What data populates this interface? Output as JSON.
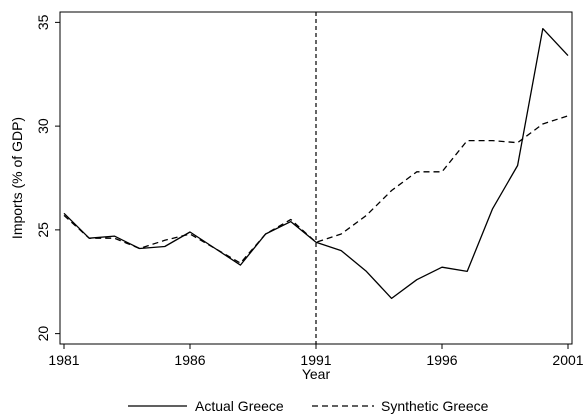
{
  "chart_data": {
    "type": "line",
    "title": "",
    "xlabel": "Year",
    "ylabel": "Imports (% of GDP)",
    "x": [
      1981,
      1982,
      1983,
      1984,
      1985,
      1986,
      1987,
      1988,
      1989,
      1990,
      1991,
      1992,
      1993,
      1994,
      1995,
      1996,
      1997,
      1998,
      1999,
      2000,
      2001
    ],
    "xlim": [
      1981,
      2001
    ],
    "ylim": [
      20,
      35
    ],
    "xticks": [
      "1981",
      "1986",
      "1991",
      "1996",
      "2001"
    ],
    "yticks": [
      "20",
      "25",
      "30",
      "35"
    ],
    "reference_line": {
      "x": 1991,
      "style": "dashed"
    },
    "grid": false,
    "legend_position": "bottom",
    "series": [
      {
        "name": "Actual Greece",
        "style": "solid",
        "color": "#000000",
        "values": [
          25.8,
          24.6,
          24.7,
          24.1,
          24.2,
          24.9,
          24.1,
          23.3,
          24.8,
          25.4,
          24.4,
          24.0,
          23.0,
          21.7,
          22.6,
          23.2,
          23.0,
          26.0,
          28.1,
          34.7,
          33.4
        ]
      },
      {
        "name": "Synthetic Greece",
        "style": "dashed",
        "color": "#000000",
        "values": [
          25.7,
          24.6,
          24.6,
          24.1,
          24.5,
          24.8,
          24.1,
          23.4,
          24.8,
          25.5,
          24.4,
          24.8,
          25.7,
          26.9,
          27.8,
          27.8,
          29.3,
          29.3,
          29.2,
          30.1,
          30.5
        ]
      }
    ]
  }
}
